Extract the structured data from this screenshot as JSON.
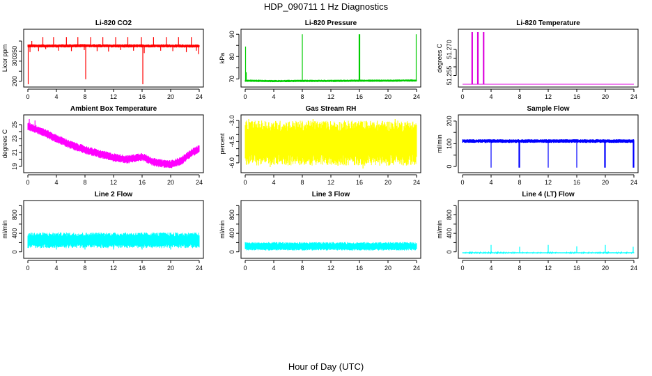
{
  "title": "HDP_090711  1 Hz Diagnostics",
  "xlabel": "Hour of Day (UTC)",
  "chart_data": [
    {
      "type": "line",
      "title": "Li-820 CO2",
      "ylabel": "Licor ppm",
      "color": "#ff0000",
      "xlim": [
        0,
        24
      ],
      "ylim": [
        185,
        445
      ],
      "xticks": [
        0,
        4,
        8,
        12,
        16,
        20,
        24
      ],
      "yticks": [
        200,
        250,
        300,
        350,
        400
      ],
      "ytick_labels": [
        "200",
        "",
        "300",
        "350",
        ""
      ],
      "baseline": [
        [
          0,
          376
        ],
        [
          4,
          376
        ],
        [
          8,
          377
        ],
        [
          12,
          376
        ],
        [
          16,
          376
        ],
        [
          20,
          376
        ],
        [
          24,
          375
        ]
      ],
      "band": 8,
      "spikes": [
        [
          0.05,
          185
        ],
        [
          0.3,
          345
        ],
        [
          0.55,
          400
        ],
        [
          1.5,
          350
        ],
        [
          2.1,
          420
        ],
        [
          2.5,
          360
        ],
        [
          3.6,
          420
        ],
        [
          4.3,
          352
        ],
        [
          5.4,
          420
        ],
        [
          6.1,
          350
        ],
        [
          7.0,
          420
        ],
        [
          7.9,
          355
        ],
        [
          8.1,
          210
        ],
        [
          8.8,
          420
        ],
        [
          9.7,
          350
        ],
        [
          10.5,
          420
        ],
        [
          11.3,
          348
        ],
        [
          12.3,
          420
        ],
        [
          13.0,
          355
        ],
        [
          14.0,
          420
        ],
        [
          14.8,
          352
        ],
        [
          15.9,
          420
        ],
        [
          16.1,
          185
        ],
        [
          16.3,
          340
        ],
        [
          17.6,
          420
        ],
        [
          18.6,
          352
        ],
        [
          19.4,
          420
        ],
        [
          20.3,
          350
        ],
        [
          21.1,
          420
        ],
        [
          22.2,
          345
        ],
        [
          22.9,
          420
        ],
        [
          23.6,
          352
        ],
        [
          23.9,
          335
        ]
      ]
    },
    {
      "type": "line",
      "title": "Li-820 Pressure",
      "ylabel": "kPa",
      "color": "#00cc00",
      "xlim": [
        0,
        24
      ],
      "ylim": [
        67.6,
        91
      ],
      "xticks": [
        0,
        4,
        8,
        12,
        16,
        20,
        24
      ],
      "yticks": [
        70,
        75,
        80,
        85,
        90
      ],
      "ytick_labels": [
        "70",
        "",
        "80",
        "",
        "90"
      ],
      "baseline": [
        [
          0,
          69.2
        ],
        [
          4,
          69.0
        ],
        [
          8,
          69.1
        ],
        [
          12,
          69.1
        ],
        [
          16,
          69.2
        ],
        [
          20,
          69.2
        ],
        [
          24,
          69.3
        ]
      ],
      "band": 0.5,
      "spikes": [
        [
          0.05,
          84.5
        ],
        [
          0.15,
          73
        ],
        [
          8.0,
          90
        ],
        [
          15.95,
          90
        ],
        [
          16.05,
          90
        ],
        [
          23.95,
          90
        ]
      ]
    },
    {
      "type": "line",
      "title": "Li-820 Temperature",
      "ylabel": "degrees C",
      "color": "#dd00dd",
      "xlim": [
        0,
        24
      ],
      "ylim": [
        51.25,
        51.28
      ],
      "xticks": [
        0,
        4,
        8,
        12,
        16,
        20,
        24
      ],
      "yticks": [
        51.255,
        51.26,
        51.265,
        51.27
      ],
      "ytick_labels": [
        "51.255",
        "",
        "",
        "51.270"
      ],
      "baseline": [
        [
          0,
          51.25
        ],
        [
          24,
          51.25
        ]
      ],
      "band": 0,
      "spikes": [
        [
          1.3,
          51.28
        ],
        [
          1.4,
          51.28
        ],
        [
          2.1,
          51.28
        ],
        [
          2.2,
          51.28
        ],
        [
          2.9,
          51.28
        ],
        [
          3.0,
          51.28
        ]
      ]
    },
    {
      "type": "line",
      "title": "Ambient Box Temperature",
      "ylabel": "degrees C",
      "color": "#ff00ff",
      "xlim": [
        0,
        24
      ],
      "ylim": [
        18.5,
        26
      ],
      "xticks": [
        0,
        4,
        8,
        12,
        16,
        20,
        24
      ],
      "yticks": [
        19,
        20,
        21,
        22,
        23,
        24,
        25
      ],
      "ytick_labels": [
        "19",
        "",
        "21",
        "",
        "23",
        "",
        "25"
      ],
      "baseline": [
        [
          0,
          24.8
        ],
        [
          2,
          24.0
        ],
        [
          4,
          23.0
        ],
        [
          6,
          22.1
        ],
        [
          8,
          21.4
        ],
        [
          10,
          20.8
        ],
        [
          12,
          20.3
        ],
        [
          14,
          20.0
        ],
        [
          16,
          20.4
        ],
        [
          17,
          19.9
        ],
        [
          18,
          19.5
        ],
        [
          20,
          19.3
        ],
        [
          21.5,
          19.8
        ],
        [
          23,
          21.0
        ],
        [
          24,
          21.5
        ]
      ],
      "band": 0.6,
      "spikes": [
        [
          0.2,
          25.8
        ],
        [
          1.0,
          25.6
        ]
      ]
    },
    {
      "type": "line",
      "title": "Gas Stream RH",
      "ylabel": "percent",
      "color": "#ffff00",
      "xlim": [
        0,
        24
      ],
      "ylim": [
        -6.5,
        -2.8
      ],
      "xticks": [
        0,
        4,
        8,
        12,
        16,
        20,
        24
      ],
      "yticks": [
        -6,
        -5.5,
        -5,
        -4.5,
        -4,
        -3.5,
        -3
      ],
      "ytick_labels": [
        "-6.0",
        "",
        "",
        "-4.5",
        "",
        "",
        "-3.0"
      ],
      "baseline": [
        [
          0,
          -4.6
        ],
        [
          24,
          -4.6
        ]
      ],
      "band": 1.6,
      "spikes": [
        [
          0.5,
          -2.9
        ],
        [
          3.5,
          -6.3
        ],
        [
          9.5,
          -2.9
        ],
        [
          16.5,
          -6.4
        ],
        [
          21.0,
          -2.9
        ]
      ]
    },
    {
      "type": "line",
      "title": "Sample Flow",
      "ylabel": "ml/min",
      "color": "#0000ff",
      "xlim": [
        0,
        24
      ],
      "ylim": [
        -15,
        215
      ],
      "xticks": [
        0,
        4,
        8,
        12,
        16,
        20,
        24
      ],
      "yticks": [
        0,
        50,
        100,
        150,
        200
      ],
      "ytick_labels": [
        "0",
        "",
        "100",
        "",
        "200"
      ],
      "baseline": [
        [
          0,
          112
        ],
        [
          24,
          112
        ]
      ],
      "band": 8,
      "spikes": [
        [
          4.0,
          -5
        ],
        [
          7.9,
          -5
        ],
        [
          8.0,
          -5
        ],
        [
          12.0,
          -5
        ],
        [
          16.0,
          -5
        ],
        [
          19.9,
          -5
        ],
        [
          20.0,
          -5
        ],
        [
          23.9,
          -5
        ],
        [
          24.0,
          -5
        ]
      ]
    },
    {
      "type": "line",
      "title": "Line 2 Flow",
      "ylabel": "ml/min",
      "color": "#00ffff",
      "xlim": [
        0,
        24
      ],
      "ylim": [
        -80,
        1050
      ],
      "xticks": [
        0,
        4,
        8,
        12,
        16,
        20,
        24
      ],
      "yticks": [
        0,
        200,
        400,
        600,
        800,
        1000
      ],
      "ytick_labels": [
        "0",
        "400",
        "800"
      ],
      "ytick_label_values": [
        0,
        400,
        800
      ],
      "baseline": [
        [
          0,
          250
        ],
        [
          24,
          250
        ]
      ],
      "band": 170,
      "spikes": [
        [
          4.0,
          50
        ],
        [
          8.0,
          50
        ],
        [
          12.0,
          50
        ],
        [
          16.0,
          50
        ],
        [
          20.0,
          50
        ]
      ]
    },
    {
      "type": "line",
      "title": "Line 3 Flow",
      "ylabel": "ml/min",
      "color": "#00ffff",
      "xlim": [
        0,
        24
      ],
      "ylim": [
        -80,
        1050
      ],
      "xticks": [
        0,
        4,
        8,
        12,
        16,
        20,
        24
      ],
      "yticks": [
        0,
        200,
        400,
        600,
        800,
        1000
      ],
      "ytick_labels": [
        "0",
        "400",
        "800"
      ],
      "ytick_label_values": [
        0,
        400,
        800
      ],
      "baseline": [
        [
          0,
          120
        ],
        [
          24,
          120
        ]
      ],
      "band": 90,
      "spikes": []
    },
    {
      "type": "line",
      "title": "Line 4 (LT) Flow",
      "ylabel": "ml/min",
      "color": "#00ffff",
      "xlim": [
        0,
        24
      ],
      "ylim": [
        -80,
        1050
      ],
      "xticks": [
        0,
        4,
        8,
        12,
        16,
        20,
        24
      ],
      "yticks": [
        0,
        200,
        400,
        600,
        800,
        1000
      ],
      "ytick_labels": [
        "0",
        "400",
        "800"
      ],
      "ytick_label_values": [
        0,
        400,
        800
      ],
      "baseline": [
        [
          0,
          -20
        ],
        [
          24,
          -20
        ]
      ],
      "band": 10,
      "spikes": [
        [
          4.0,
          150
        ],
        [
          8.0,
          110
        ],
        [
          12.0,
          150
        ],
        [
          16.0,
          120
        ],
        [
          20.0,
          150
        ],
        [
          23.9,
          110
        ]
      ]
    }
  ]
}
